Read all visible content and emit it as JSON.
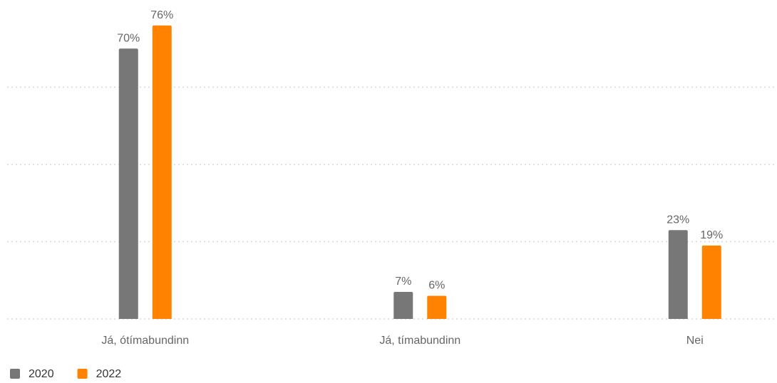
{
  "chart_data": {
    "type": "bar",
    "categories": [
      "Já, ótímabundinn",
      "Já, tímabundinn",
      "Nei"
    ],
    "series": [
      {
        "name": "2020",
        "color": "#777777",
        "values": [
          70,
          7,
          23
        ],
        "value_labels": [
          "70%",
          "7%",
          "23%"
        ]
      },
      {
        "name": "2022",
        "color": "#ff8200",
        "values": [
          76,
          6,
          19
        ],
        "value_labels": [
          "76%",
          "6%",
          "19%"
        ]
      }
    ],
    "ylim": [
      0,
      80
    ],
    "yticks": [
      0,
      20,
      40,
      60
    ],
    "grid": true,
    "legend": "bottom-left"
  }
}
